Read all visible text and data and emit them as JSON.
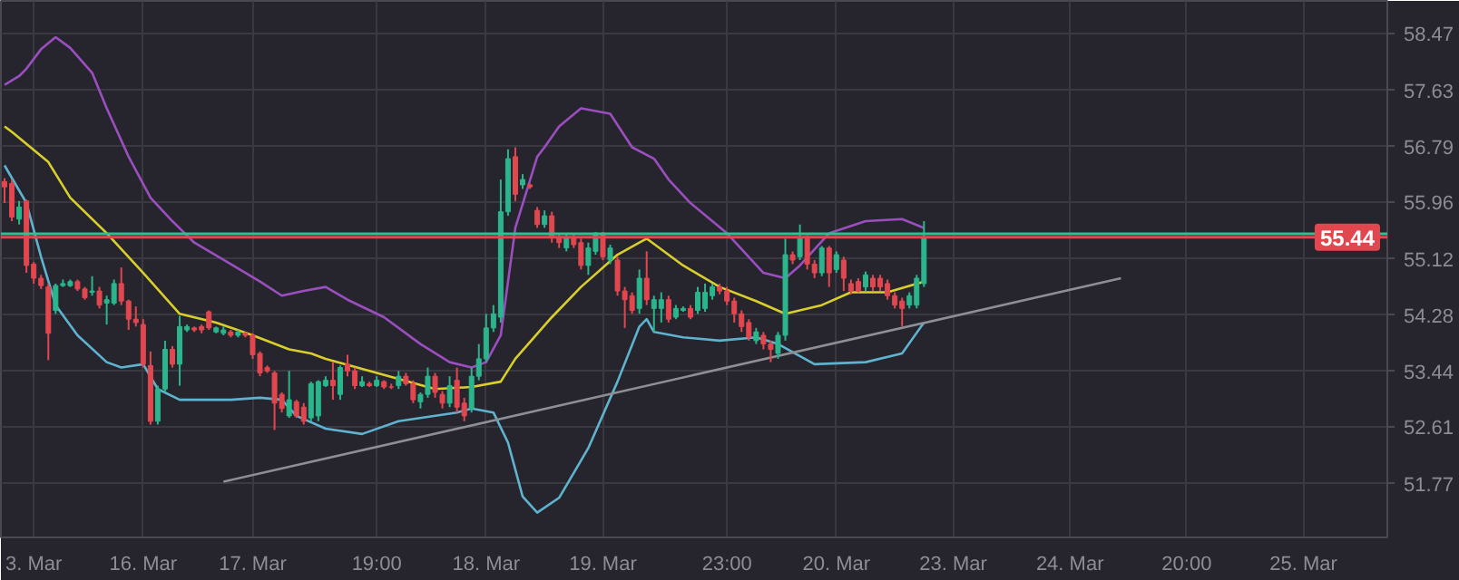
{
  "chart_data": {
    "type": "candlestick",
    "categories": [
      null,
      null,
      null,
      null,
      "3. Mar",
      null,
      null,
      null,
      null,
      null,
      null,
      null,
      null,
      null,
      null,
      null,
      null,
      null,
      null,
      "16. Mar",
      null,
      null,
      null,
      null,
      null,
      null,
      null,
      null,
      null,
      null,
      null,
      null,
      null,
      null,
      "17. Mar",
      null,
      null,
      null,
      null,
      null,
      null,
      null,
      null,
      null,
      null,
      null,
      null,
      null,
      null,
      null,
      null,
      "19:00",
      null,
      null,
      null,
      null,
      null,
      null,
      null,
      null,
      null,
      null,
      null,
      null,
      null,
      null,
      "18. Mar",
      null,
      null,
      null,
      null,
      null,
      null,
      null,
      null,
      null,
      null,
      null,
      null,
      null,
      null,
      null,
      "19. Mar",
      null,
      null,
      null,
      null,
      null,
      null,
      null,
      null,
      null,
      null,
      null,
      null,
      null,
      null,
      null,
      null,
      "23:00",
      null,
      null,
      null,
      null,
      null,
      null,
      null,
      null,
      null,
      null,
      null,
      null,
      null,
      null,
      "20. Mar",
      null,
      null,
      null,
      null,
      null,
      null,
      null,
      null,
      null,
      null,
      null,
      null,
      null,
      null,
      null,
      "23. Mar",
      null,
      null,
      null,
      null,
      null,
      null,
      null,
      null,
      null,
      null,
      null,
      null,
      null,
      null,
      null,
      "24. Mar",
      null,
      null,
      null,
      null,
      null,
      null,
      null,
      null,
      null,
      null,
      null,
      null,
      null,
      null,
      null,
      "20:00",
      null,
      null,
      null,
      null,
      null,
      null,
      null,
      null,
      null,
      null,
      null,
      null,
      null,
      null,
      null,
      "25. Mar",
      null,
      null,
      null,
      null,
      null,
      null,
      null,
      null,
      null,
      null,
      null
    ],
    "ohlc": [
      [
        56.27,
        56.32,
        55.95,
        56.19
      ],
      [
        56.24,
        56.3,
        55.68,
        55.74
      ],
      [
        55.71,
        55.98,
        55.63,
        55.89
      ],
      [
        55.98,
        56.0,
        54.91,
        55.02
      ],
      [
        55.04,
        55.07,
        54.75,
        54.83
      ],
      [
        54.83,
        54.88,
        54.67,
        54.72
      ],
      [
        54.7,
        54.75,
        53.61,
        54.01
      ],
      [
        54.35,
        54.75,
        54.3,
        54.72
      ],
      [
        54.72,
        54.81,
        54.7,
        54.75
      ],
      [
        54.72,
        54.81,
        54.7,
        54.78
      ],
      [
        54.78,
        54.81,
        54.64,
        54.67
      ],
      [
        54.67,
        54.7,
        54.51,
        54.54
      ],
      [
        54.62,
        54.86,
        54.57,
        54.64
      ],
      [
        54.64,
        54.7,
        54.38,
        54.43
      ],
      [
        54.46,
        54.57,
        54.14,
        54.51
      ],
      [
        54.46,
        54.81,
        54.43,
        54.75
      ],
      [
        54.75,
        54.99,
        54.43,
        54.49
      ],
      [
        54.49,
        54.51,
        54.06,
        54.22
      ],
      [
        54.22,
        54.41,
        54.11,
        54.17
      ],
      [
        54.14,
        54.22,
        53.5,
        53.55
      ],
      [
        53.53,
        53.74,
        52.65,
        52.7
      ],
      [
        52.7,
        53.23,
        52.65,
        53.18
      ],
      [
        53.18,
        53.9,
        53.13,
        53.77
      ],
      [
        53.77,
        53.82,
        53.5,
        53.55
      ],
      [
        53.55,
        54.27,
        53.23,
        54.11
      ],
      [
        54.06,
        54.14,
        54.03,
        54.11
      ],
      [
        54.09,
        54.11,
        54.03,
        54.06
      ],
      [
        54.11,
        54.14,
        54.01,
        54.06
      ],
      [
        54.33,
        54.35,
        54.06,
        54.09
      ],
      [
        54.03,
        54.11,
        54.01,
        54.09
      ],
      [
        54.01,
        54.11,
        53.98,
        54.06
      ],
      [
        54.03,
        54.06,
        53.95,
        53.98
      ],
      [
        53.98,
        54.06,
        53.95,
        54.03
      ],
      [
        54.01,
        54.03,
        53.95,
        53.98
      ],
      [
        53.98,
        54.01,
        53.63,
        53.69
      ],
      [
        53.71,
        53.74,
        53.37,
        53.42
      ],
      [
        53.5,
        53.53,
        53.42,
        53.45
      ],
      [
        53.42,
        53.45,
        52.57,
        52.97
      ],
      [
        53.1,
        53.13,
        52.83,
        52.89
      ],
      [
        52.78,
        53.45,
        52.75,
        53.02
      ],
      [
        52.99,
        53.02,
        52.75,
        52.78
      ],
      [
        52.91,
        52.97,
        52.65,
        52.7
      ],
      [
        52.75,
        53.29,
        52.7,
        53.26
      ],
      [
        52.78,
        53.31,
        52.7,
        53.29
      ],
      [
        53.23,
        53.37,
        53.21,
        53.31
      ],
      [
        53.31,
        53.58,
        53.02,
        53.23
      ],
      [
        53.1,
        53.53,
        53.02,
        53.5
      ],
      [
        53.55,
        53.69,
        53.37,
        53.45
      ],
      [
        53.45,
        53.5,
        53.18,
        53.23
      ],
      [
        53.23,
        53.37,
        53.21,
        53.29
      ],
      [
        53.26,
        53.29,
        53.21,
        53.23
      ],
      [
        53.23,
        53.37,
        53.21,
        53.31
      ],
      [
        53.29,
        53.31,
        53.18,
        53.21
      ],
      [
        53.21,
        53.26,
        53.18,
        53.21
      ],
      [
        53.23,
        53.45,
        53.18,
        53.37
      ],
      [
        53.37,
        53.42,
        53.23,
        53.26
      ],
      [
        53.26,
        53.31,
        52.97,
        53.02
      ],
      [
        52.99,
        53.13,
        52.89,
        53.1
      ],
      [
        53.1,
        53.5,
        53.05,
        53.37
      ],
      [
        53.37,
        53.42,
        53.05,
        53.13
      ],
      [
        53.1,
        53.15,
        52.89,
        52.97
      ],
      [
        52.97,
        53.37,
        52.91,
        53.23
      ],
      [
        53.31,
        53.5,
        52.83,
        52.91
      ],
      [
        52.97,
        53.05,
        52.7,
        52.78
      ],
      [
        52.89,
        53.5,
        52.83,
        53.37
      ],
      [
        53.37,
        53.85,
        53.31,
        53.63
      ],
      [
        53.63,
        54.3,
        53.58,
        54.09
      ],
      [
        54.09,
        54.43,
        54.03,
        54.3
      ],
      [
        54.25,
        56.3,
        54.17,
        55.82
      ],
      [
        55.82,
        56.75,
        55.76,
        56.61
      ],
      [
        56.64,
        56.78,
        55.98,
        56.08
      ],
      [
        56.22,
        56.38,
        56.16,
        56.3
      ],
      [
        56.22,
        56.24,
        56.16,
        56.19
      ],
      [
        55.84,
        55.89,
        55.58,
        55.63
      ],
      [
        55.63,
        55.84,
        55.58,
        55.76
      ],
      [
        55.76,
        55.82,
        55.36,
        55.44
      ],
      [
        55.44,
        55.5,
        55.28,
        55.36
      ],
      [
        55.28,
        55.5,
        55.23,
        55.44
      ],
      [
        55.44,
        55.5,
        55.28,
        55.33
      ],
      [
        55.36,
        55.42,
        54.96,
        55.02
      ],
      [
        55.02,
        55.36,
        54.88,
        55.28
      ],
      [
        55.23,
        55.52,
        55.18,
        55.5
      ],
      [
        55.5,
        55.52,
        55.1,
        55.15
      ],
      [
        55.1,
        55.33,
        55.04,
        55.28
      ],
      [
        55.1,
        55.15,
        54.57,
        54.64
      ],
      [
        54.64,
        54.7,
        54.09,
        54.51
      ],
      [
        54.57,
        54.62,
        54.3,
        54.35
      ],
      [
        54.38,
        54.96,
        54.3,
        54.83
      ],
      [
        54.83,
        55.23,
        54.43,
        54.51
      ],
      [
        54.38,
        54.57,
        54.03,
        54.51
      ],
      [
        54.38,
        54.62,
        54.17,
        54.51
      ],
      [
        54.51,
        54.57,
        54.17,
        54.22
      ],
      [
        54.25,
        54.43,
        54.22,
        54.38
      ],
      [
        54.35,
        54.41,
        54.33,
        54.38
      ],
      [
        54.38,
        54.43,
        54.22,
        54.25
      ],
      [
        54.35,
        54.7,
        54.3,
        54.62
      ],
      [
        54.38,
        54.75,
        54.33,
        54.62
      ],
      [
        54.57,
        54.75,
        54.51,
        54.7
      ],
      [
        54.7,
        54.75,
        54.59,
        54.64
      ],
      [
        54.64,
        54.7,
        54.43,
        54.49
      ],
      [
        54.49,
        54.54,
        54.17,
        54.3
      ],
      [
        54.3,
        54.35,
        54.03,
        54.11
      ],
      [
        54.17,
        54.22,
        53.9,
        53.95
      ],
      [
        53.9,
        54.09,
        53.85,
        54.03
      ],
      [
        53.98,
        54.03,
        53.77,
        53.85
      ],
      [
        53.85,
        53.9,
        53.58,
        53.77
      ],
      [
        53.71,
        54.03,
        53.63,
        53.98
      ],
      [
        53.98,
        55.42,
        53.9,
        55.18
      ],
      [
        55.18,
        55.23,
        55.04,
        55.1
      ],
      [
        55.15,
        55.63,
        55.1,
        55.42
      ],
      [
        55.42,
        55.47,
        54.96,
        55.04
      ],
      [
        55.04,
        55.1,
        54.83,
        54.91
      ],
      [
        54.91,
        55.31,
        54.86,
        55.28
      ],
      [
        55.28,
        55.31,
        54.7,
        54.91
      ],
      [
        54.96,
        55.23,
        54.91,
        55.18
      ],
      [
        55.1,
        55.15,
        54.64,
        54.83
      ],
      [
        54.75,
        54.81,
        54.59,
        54.64
      ],
      [
        54.78,
        54.83,
        54.62,
        54.64
      ],
      [
        54.7,
        54.93,
        54.64,
        54.88
      ],
      [
        54.83,
        54.88,
        54.64,
        54.7
      ],
      [
        54.83,
        54.88,
        54.64,
        54.7
      ],
      [
        54.75,
        54.81,
        54.51,
        54.57
      ],
      [
        54.57,
        54.62,
        54.38,
        54.43
      ],
      [
        54.49,
        54.54,
        54.11,
        54.38
      ],
      [
        54.43,
        54.62,
        54.38,
        54.57
      ],
      [
        54.43,
        54.88,
        54.38,
        54.83
      ],
      [
        54.75,
        55.68,
        54.7,
        55.44
      ],
      null,
      null,
      null,
      null,
      null,
      null,
      null,
      null,
      null,
      null,
      null,
      null,
      null,
      null,
      null,
      null,
      null,
      null,
      null,
      null,
      null,
      null,
      null,
      null,
      null,
      null,
      null,
      null,
      null,
      null,
      null,
      null,
      null,
      null,
      null,
      null,
      null,
      null,
      null,
      null,
      null,
      null,
      null,
      null,
      null,
      null,
      null,
      null,
      null,
      null,
      null,
      null,
      null,
      null,
      null,
      null,
      null,
      null,
      null,
      null,
      null,
      null,
      null
    ],
    "colors": [
      "#e2474f",
      "#e2474f",
      "#2bb58c",
      "#e2474f",
      "#e2474f",
      "#e2474f",
      "#e2474f",
      "#2bb58c",
      "#2bb58c",
      "#2bb58c",
      "#e2474f",
      "#e2474f",
      "#2bb58c",
      "#e2474f",
      "#2bb58c",
      "#2bb58c",
      "#e2474f",
      "#e2474f",
      "#e2474f",
      "#e2474f",
      "#e2474f",
      "#2bb58c",
      "#2bb58c",
      "#e2474f",
      "#2bb58c",
      "#2bb58c",
      "#e2474f",
      "#e2474f",
      "#e2474f",
      "#2bb58c",
      "#2bb58c",
      "#e2474f",
      "#2bb58c",
      "#e2474f",
      "#e2474f",
      "#e2474f",
      "#e2474f",
      "#e2474f",
      "#e2474f",
      "#2bb58c",
      "#e2474f",
      "#e2474f",
      "#2bb58c",
      "#2bb58c",
      "#2bb58c",
      "#e2474f",
      "#2bb58c",
      "#e2474f",
      "#e2474f",
      "#2bb58c",
      "#e2474f",
      "#2bb58c",
      "#e2474f",
      "#e2474f",
      "#2bb58c",
      "#e2474f",
      "#e2474f",
      "#2bb58c",
      "#2bb58c",
      "#e2474f",
      "#e2474f",
      "#2bb58c",
      "#e2474f",
      "#e2474f",
      "#2bb58c",
      "#2bb58c",
      "#2bb58c",
      "#2bb58c",
      "#2bb58c",
      "#2bb58c",
      "#e2474f",
      "#2bb58c",
      "#e2474f",
      "#e2474f",
      "#2bb58c",
      "#e2474f",
      "#e2474f",
      "#2bb58c",
      "#e2474f",
      "#e2474f",
      "#2bb58c",
      "#2bb58c",
      "#e2474f",
      "#2bb58c",
      "#e2474f",
      "#e2474f",
      "#e2474f",
      "#2bb58c",
      "#e2474f",
      "#2bb58c",
      "#2bb58c",
      "#e2474f",
      "#2bb58c",
      "#2bb58c",
      "#e2474f",
      "#2bb58c",
      "#2bb58c",
      "#2bb58c",
      "#e2474f",
      "#e2474f",
      "#e2474f",
      "#e2474f",
      "#e2474f",
      "#2bb58c",
      "#e2474f",
      "#e2474f",
      "#2bb58c",
      "#2bb58c",
      "#e2474f",
      "#2bb58c",
      "#e2474f",
      "#e2474f",
      "#2bb58c",
      "#e2474f",
      "#2bb58c",
      "#e2474f",
      "#e2474f",
      "#e2474f",
      "#2bb58c",
      "#e2474f",
      "#e2474f",
      "#e2474f",
      "#e2474f",
      "#e2474f",
      "#2bb58c",
      "#2bb58c",
      "#2bb58c",
      null,
      null,
      null,
      null,
      null,
      null,
      null,
      null,
      null,
      null,
      null,
      null,
      null,
      null,
      null,
      null,
      null,
      null,
      null,
      null,
      null,
      null,
      null,
      null,
      null,
      null,
      null,
      null,
      null,
      null,
      null,
      null,
      null,
      null,
      null,
      null,
      null,
      null,
      null,
      null,
      null,
      null,
      null,
      null,
      null,
      null,
      null,
      null,
      null,
      null,
      null,
      null,
      null,
      null,
      null,
      null,
      null,
      null,
      null,
      null,
      null,
      null,
      null
    ],
    "series": [
      {
        "type": "line",
        "color": "#9b4fbf",
        "values": [
          57.71,
          null,
          57.84,
          57.95,
          null,
          58.24,
          null,
          58.42,
          null,
          58.26,
          null,
          null,
          57.89,
          null,
          57.36,
          null,
          null,
          56.64,
          null,
          null,
          56.03,
          null,
          null,
          55.68,
          null,
          null,
          55.36,
          null,
          null,
          null,
          null,
          55.04,
          null,
          null,
          null,
          54.78,
          null,
          null,
          54.57,
          null,
          null,
          54.64,
          null,
          null,
          54.7,
          null,
          null,
          54.51,
          null,
          null,
          null,
          null,
          54.25,
          null,
          null,
          null,
          null,
          53.85,
          null,
          null,
          null,
          53.58,
          null,
          null,
          53.5,
          null,
          53.58,
          null,
          53.98,
          null,
          55.58,
          null,
          null,
          56.64,
          56.78,
          null,
          57.09,
          null,
          null,
          57.36,
          null,
          null,
          null,
          57.28,
          null,
          null,
          56.78,
          null,
          null,
          56.61,
          null,
          56.3,
          null,
          null,
          55.95,
          null,
          null,
          null,
          null,
          55.5,
          null,
          null,
          null,
          null,
          54.91,
          null,
          null,
          54.83,
          null,
          55.02,
          null,
          null,
          null,
          55.5,
          null,
          null,
          null,
          null,
          55.68,
          null,
          null,
          null,
          null,
          55.71,
          null,
          null,
          55.58,
          null,
          null,
          null,
          null,
          null,
          null,
          null,
          null,
          null,
          null,
          null,
          null,
          null,
          null,
          null,
          null,
          null,
          null,
          null,
          null,
          null,
          null,
          null,
          null,
          null,
          null,
          null,
          null,
          null,
          null,
          null,
          null,
          null,
          null,
          null,
          null,
          null,
          null,
          null,
          null,
          null,
          null,
          null,
          null,
          null,
          null,
          null,
          null,
          null,
          null,
          null,
          null,
          null,
          null,
          null,
          null,
          null,
          null,
          null,
          null,
          null,
          null,
          null
        ]
      },
      {
        "type": "line",
        "color": "#d9cf2b",
        "values": [
          57.09,
          57.01,
          null,
          null,
          null,
          null,
          56.56,
          null,
          null,
          56.03,
          null,
          null,
          null,
          null,
          55.5,
          null,
          null,
          null,
          null,
          54.91,
          null,
          null,
          null,
          null,
          54.3,
          null,
          null,
          null,
          null,
          54.17,
          null,
          null,
          null,
          null,
          53.98,
          null,
          null,
          null,
          null,
          53.77,
          null,
          null,
          53.71,
          null,
          53.63,
          null,
          null,
          null,
          null,
          null,
          53.45,
          null,
          null,
          null,
          null,
          null,
          null,
          null,
          null,
          53.18,
          null,
          null,
          null,
          null,
          53.21,
          null,
          null,
          null,
          53.29,
          null,
          53.63,
          null,
          null,
          null,
          null,
          54.25,
          null,
          null,
          null,
          54.7,
          null,
          null,
          null,
          null,
          55.18,
          null,
          null,
          55.36,
          55.42,
          null,
          null,
          null,
          null,
          55.02,
          null,
          null,
          null,
          null,
          54.7,
          null,
          null,
          null,
          null,
          54.49,
          null,
          null,
          null,
          54.3,
          null,
          null,
          null,
          null,
          54.43,
          null,
          null,
          null,
          54.62,
          null,
          null,
          null,
          null,
          54.62,
          null,
          null,
          null,
          null,
          54.78,
          null,
          null,
          null,
          null,
          null,
          null,
          null,
          null,
          null,
          null,
          null,
          null,
          null,
          null,
          null,
          null,
          null,
          null,
          null,
          null,
          null,
          null,
          null,
          null,
          null,
          null,
          null,
          null,
          null,
          null,
          null,
          null,
          null,
          null,
          null,
          null,
          null,
          null,
          null,
          null,
          null,
          null,
          null,
          null,
          null,
          null,
          null,
          null,
          null,
          null,
          null,
          null,
          null,
          null,
          null,
          null,
          null,
          null,
          null,
          null,
          null,
          null,
          null
        ]
      },
      {
        "type": "line",
        "color": "#5fb3cf",
        "values": [
          56.51,
          null,
          null,
          55.95,
          null,
          55.15,
          null,
          54.43,
          null,
          null,
          53.98,
          null,
          null,
          null,
          53.58,
          null,
          53.5,
          null,
          null,
          53.55,
          null,
          53.18,
          null,
          null,
          53.02,
          null,
          null,
          null,
          null,
          null,
          null,
          53.02,
          null,
          null,
          null,
          53.05,
          null,
          null,
          53.02,
          null,
          52.78,
          null,
          null,
          null,
          52.59,
          null,
          null,
          null,
          null,
          52.51,
          null,
          null,
          null,
          null,
          52.7,
          null,
          null,
          null,
          null,
          null,
          null,
          null,
          52.83,
          null,
          52.89,
          null,
          null,
          52.83,
          null,
          52.38,
          null,
          51.58,
          null,
          51.34,
          null,
          null,
          51.56,
          null,
          null,
          null,
          52.3,
          null,
          null,
          null,
          53.29,
          null,
          null,
          54.11,
          54.22,
          54.03,
          null,
          null,
          null,
          53.95,
          null,
          null,
          null,
          null,
          53.9,
          null,
          null,
          null,
          null,
          53.95,
          null,
          null,
          53.85,
          null,
          null,
          null,
          null,
          53.55,
          null,
          null,
          null,
          null,
          null,
          null,
          53.58,
          null,
          null,
          null,
          null,
          53.71,
          null,
          null,
          54.17,
          null,
          null,
          null,
          null,
          null,
          null,
          null,
          null,
          null,
          null,
          null,
          null,
          null,
          null,
          null,
          null,
          null,
          null,
          null,
          null,
          null,
          null,
          null,
          null,
          null,
          null,
          null,
          null,
          null,
          null,
          null,
          null,
          null,
          null,
          null,
          null,
          null,
          null,
          null,
          null,
          null,
          null,
          null,
          null,
          null,
          null,
          null,
          null,
          null,
          null,
          null,
          null,
          null,
          null,
          null,
          null,
          null,
          null,
          null,
          null,
          null,
          null,
          null
        ]
      },
      {
        "type": "line",
        "color": "#8e8e94",
        "values": [
          null,
          null,
          null,
          null,
          null,
          null,
          null,
          null,
          null,
          null,
          null,
          null,
          null,
          null,
          null,
          null,
          null,
          null,
          null,
          null,
          null,
          null,
          null,
          null,
          null,
          null,
          null,
          null,
          null,
          null,
          51.8,
          null,
          null,
          null,
          null,
          null,
          null,
          null,
          null,
          null,
          null,
          null,
          null,
          null,
          null,
          null,
          null,
          null,
          null,
          null,
          null,
          null,
          null,
          null,
          null,
          null,
          null,
          null,
          null,
          null,
          null,
          null,
          null,
          null,
          null,
          null,
          null,
          null,
          null,
          null,
          null,
          null,
          null,
          null,
          null,
          null,
          null,
          null,
          null,
          null,
          null,
          null,
          null,
          null,
          null,
          null,
          null,
          null,
          null,
          null,
          null,
          null,
          null,
          null,
          null,
          null,
          null,
          null,
          null,
          null,
          null,
          null,
          null,
          null,
          null,
          null,
          null,
          null,
          null,
          null,
          null,
          null,
          null,
          null,
          null,
          null,
          null,
          null,
          null,
          null,
          null,
          null,
          null,
          null,
          null,
          null,
          null,
          null,
          null,
          null,
          null,
          null,
          null,
          null,
          null,
          null,
          null,
          null,
          null,
          null,
          null,
          null,
          null,
          null,
          null,
          null,
          null,
          null,
          null,
          null,
          null,
          null,
          null,
          54.83,
          null,
          null,
          null,
          null,
          null,
          null,
          null,
          null,
          null,
          null,
          null,
          null,
          null,
          null,
          null,
          null,
          null,
          null,
          null,
          null,
          null,
          null,
          null,
          null,
          null,
          null,
          null,
          null,
          null,
          null,
          null,
          null,
          null,
          null,
          null,
          null
        ]
      }
    ],
    "ref_lines": [
      {
        "axis": "y",
        "value": 55.49,
        "color": "#2bc28f"
      },
      {
        "axis": "y",
        "value": 55.44,
        "label": "55.44",
        "color": "#e2474f"
      }
    ],
    "ylim": [
      50.97,
      58.96
    ],
    "yticks": [
      51.77,
      52.61,
      53.44,
      54.28,
      55.12,
      55.96,
      56.79,
      57.63,
      58.47
    ],
    "grid": true
  }
}
